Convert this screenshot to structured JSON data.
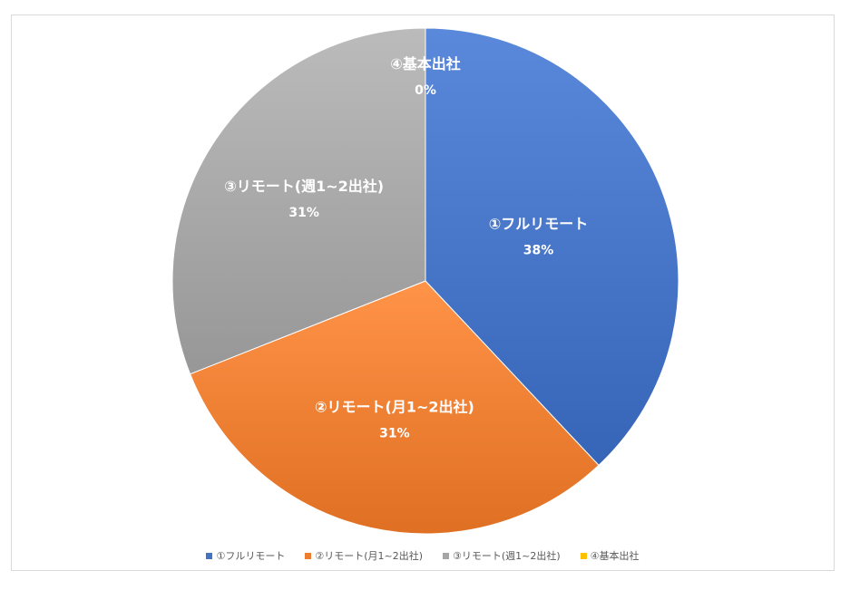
{
  "chart_data": {
    "type": "pie",
    "title": "",
    "start_angle_deg": 0,
    "direction": "clockwise",
    "slices": [
      {
        "label": "①フルリモート",
        "value": 38,
        "display": "38%",
        "color": "#4472c4"
      },
      {
        "label": "②リモート(月1~2出社)",
        "value": 31,
        "display": "31%",
        "color": "#ed7d31"
      },
      {
        "label": "③リモート(週1~2出社)",
        "value": 31,
        "display": "31%",
        "color": "#a5a5a5"
      },
      {
        "label": "④基本出社",
        "value": 0,
        "display": "0%",
        "color": "#ffc000"
      }
    ],
    "legend": {
      "position": "bottom",
      "entries": [
        "①フルリモート",
        "②リモート(月1~2出社)",
        "③リモート(週1~2出社)",
        "④基本出社"
      ]
    }
  }
}
